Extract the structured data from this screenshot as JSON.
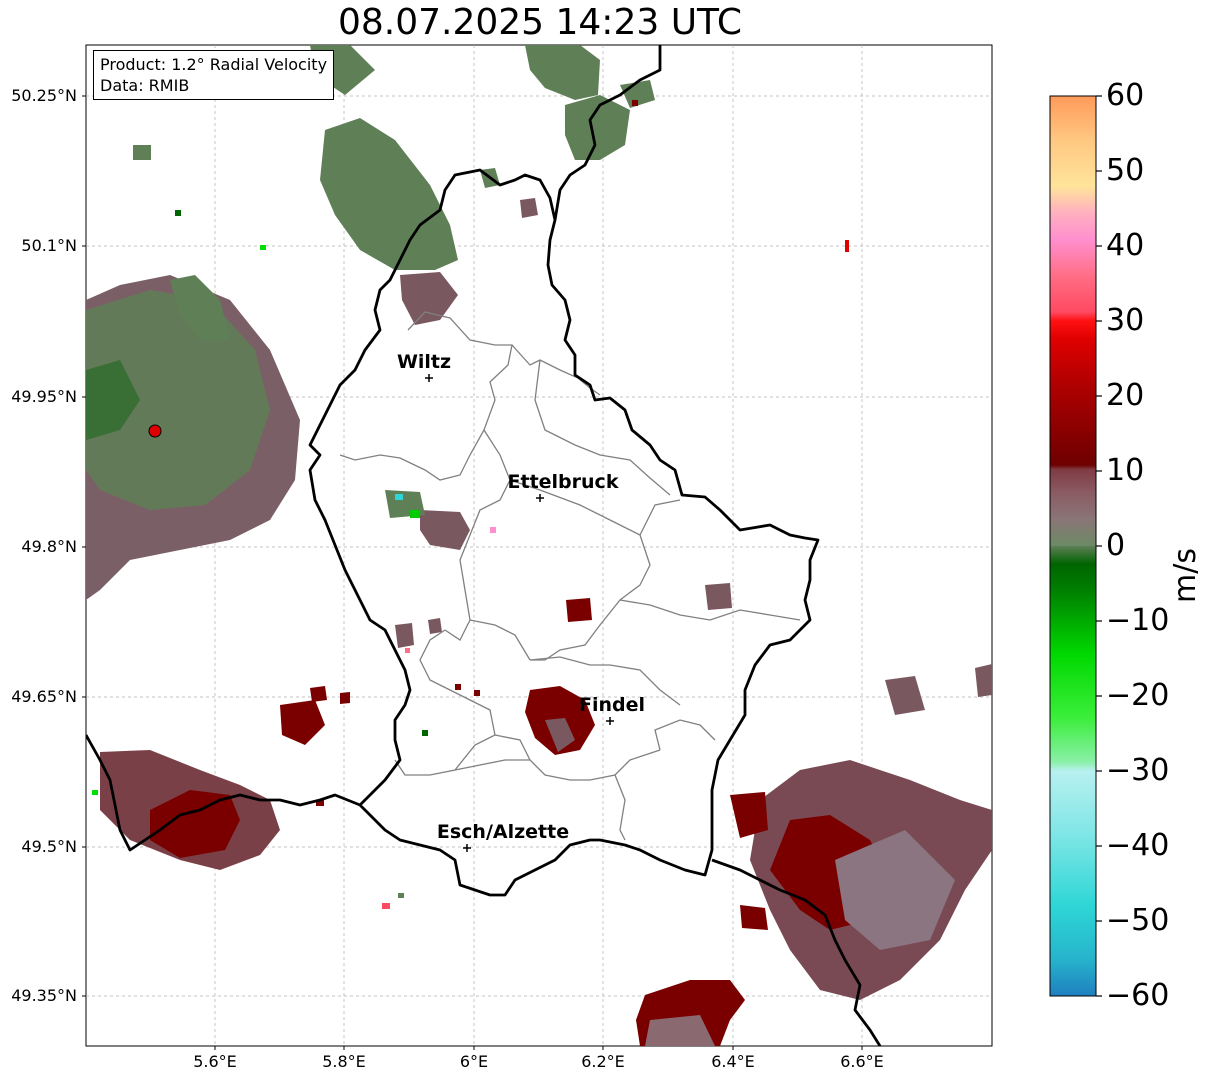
{
  "title": "08.07.2025 14:23 UTC",
  "info": {
    "product": "Product: 1.2° Radial Velocity",
    "source": "Data: RMIB"
  },
  "axes": {
    "lat_ticks": [
      "50.25°N",
      "50.1°N",
      "49.95°N",
      "49.8°N",
      "49.65°N",
      "49.5°N",
      "49.35°N"
    ],
    "lon_ticks": [
      "5.6°E",
      "5.8°E",
      "6°E",
      "6.2°E",
      "6.4°E",
      "6.6°E"
    ]
  },
  "cities": [
    {
      "name": "Wiltz"
    },
    {
      "name": "Ettelbruck"
    },
    {
      "name": "Findel"
    },
    {
      "name": "Esch/Alzette"
    }
  ],
  "colorbar": {
    "unit": "m/s",
    "ticks": [
      "60",
      "50",
      "40",
      "30",
      "20",
      "10",
      "0",
      "−10",
      "−20",
      "−30",
      "−40",
      "−50",
      "−60"
    ],
    "range": [
      -60,
      60
    ]
  },
  "colors": {
    "positive_strong": "#7a0000",
    "positive_weak": "#8a505a",
    "near_zero": "#8a7070",
    "negative_weak": "#5a7f55",
    "negative_strong": "#00cc00",
    "radar_site": "#e00000",
    "border": "#000000",
    "canton_border": "#808080"
  }
}
